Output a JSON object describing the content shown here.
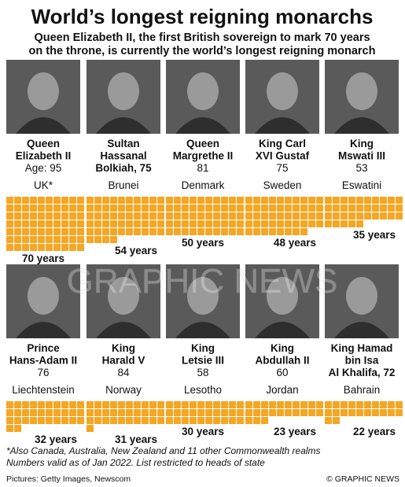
{
  "title": "World’s longest reigning monarchs",
  "subtitle": [
    "Queen Elizabeth II, the first British sovereign to mark 70 years",
    "on the throne, is currently the world’s longest reigning monarch"
  ],
  "watermark": "GRAPHIC NEWS",
  "footnote": [
    "*Also Canada, Australia, New Zealand and 11 other Commonwealth realms",
    "Numbers valid as of Jan 2022. List restricted to heads of state"
  ],
  "credits": {
    "pictures": "Pictures: Getty Images, Newscom",
    "copyright": "© GRAPHIC NEWS"
  },
  "colors": {
    "bar": "#f5a623",
    "text": "#111111",
    "photo_bg": "#5a5a5a"
  },
  "chart_data": {
    "type": "bar",
    "unit": "years",
    "categories": [
      "UK*",
      "Brunei",
      "Denmark",
      "Sweden",
      "Eswatini",
      "Liechtenstein",
      "Norway",
      "Lesotho",
      "Jordan",
      "Bahrain"
    ],
    "monarchs": [
      {
        "name": [
          "Queen",
          "Elizabeth II"
        ],
        "age_line": "Age: 95",
        "country": "UK*",
        "years": 70,
        "label": "70 years"
      },
      {
        "name": [
          "Sultan",
          "Hassanal",
          "Bolkiah, 75"
        ],
        "age_line": "",
        "country": "Brunei",
        "years": 54,
        "label": "54 years"
      },
      {
        "name": [
          "Queen",
          "Margrethe II"
        ],
        "age_line": "81",
        "country": "Denmark",
        "years": 50,
        "label": "50 years"
      },
      {
        "name": [
          "King Carl",
          "XVI Gustaf"
        ],
        "age_line": "75",
        "country": "Sweden",
        "years": 48,
        "label": "48 years"
      },
      {
        "name": [
          "King",
          "Mswati III"
        ],
        "age_line": "53",
        "country": "Eswatini",
        "years": 35,
        "label": "35 years"
      },
      {
        "name": [
          "Prince",
          "Hans-Adam II"
        ],
        "age_line": "76",
        "country": "Liechtenstein",
        "years": 32,
        "label": "32 years"
      },
      {
        "name": [
          "King",
          "Harald V"
        ],
        "age_line": "84",
        "country": "Norway",
        "years": 31,
        "label": "31 years"
      },
      {
        "name": [
          "King",
          "Letsie III"
        ],
        "age_line": "58",
        "country": "Lesotho",
        "years": 30,
        "label": "30 years"
      },
      {
        "name": [
          "King",
          "Abdullah II"
        ],
        "age_line": "60",
        "country": "Jordan",
        "years": 23,
        "label": "23 years"
      },
      {
        "name": [
          "King Hamad",
          "bin Isa",
          "Al Khalifa, 72"
        ],
        "age_line": "",
        "country": "Bahrain",
        "years": 22,
        "label": "22 years"
      }
    ]
  }
}
